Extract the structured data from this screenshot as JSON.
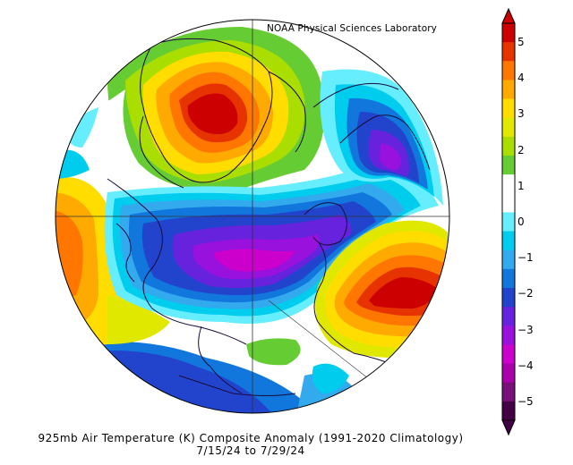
{
  "credit": "NOAA Physical Sciences Laboratory",
  "caption": {
    "line1": "925mb Air Temperature (K) Composite Anomaly (1991-2020 Climatology)",
    "line2": "7/15/24  to 7/29/24"
  },
  "colorbar": {
    "min": -5,
    "max": 5,
    "labels": [
      "5",
      "4",
      "3",
      "2",
      "1",
      "0",
      "−1",
      "−2",
      "−3",
      "−4",
      "−5"
    ],
    "colors": [
      "#cc0000",
      "#e63300",
      "#ff7700",
      "#ffaa00",
      "#ffdd00",
      "#e0e800",
      "#aadd00",
      "#66cc33",
      "#ffffff",
      "#ffffff",
      "#66eeff",
      "#00ccee",
      "#33aaee",
      "#1177dd",
      "#2244cc",
      "#6622dd",
      "#9911dd",
      "#cc00cc",
      "#aa00aa",
      "#771177",
      "#440044"
    ]
  },
  "map": {
    "projection": "north polar stereographic",
    "regions": [
      {
        "name": "greenland-warm",
        "anomaly": 5
      },
      {
        "name": "eastern-siberia-warm",
        "anomaly": 5
      },
      {
        "name": "central-arctic-cold",
        "anomaly": -4
      },
      {
        "name": "kara-sea-cold",
        "anomaly": -3
      },
      {
        "name": "north-atlantic-cold",
        "anomaly": -2
      }
    ]
  }
}
